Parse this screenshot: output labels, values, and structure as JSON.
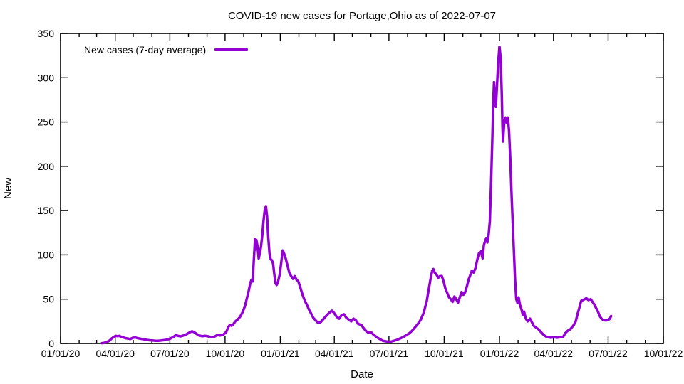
{
  "chart_data": {
    "type": "line",
    "title": "COVID-19 new cases for Portage,Ohio as of 2022-07-07",
    "xlabel": "Date",
    "ylabel": "New",
    "grid": false,
    "legend_position": "top-left-inside",
    "x_range": [
      "2020-01-01",
      "2022-10-01"
    ],
    "ylim": [
      0,
      350
    ],
    "y_ticks": [
      0,
      50,
      100,
      150,
      200,
      250,
      300,
      350
    ],
    "x_ticks": [
      {
        "date": "2020-01-01",
        "label": "01/01/20"
      },
      {
        "date": "2020-04-01",
        "label": "04/01/20"
      },
      {
        "date": "2020-07-01",
        "label": "07/01/20"
      },
      {
        "date": "2020-10-01",
        "label": "10/01/20"
      },
      {
        "date": "2021-01-01",
        "label": "01/01/21"
      },
      {
        "date": "2021-04-01",
        "label": "04/01/21"
      },
      {
        "date": "2021-07-01",
        "label": "07/01/21"
      },
      {
        "date": "2021-10-01",
        "label": "10/01/21"
      },
      {
        "date": "2022-01-01",
        "label": "01/01/22"
      },
      {
        "date": "2022-04-01",
        "label": "04/01/22"
      },
      {
        "date": "2022-07-01",
        "label": "07/01/22"
      },
      {
        "date": "2022-10-01",
        "label": "10/01/22"
      }
    ],
    "minor_x_tick_interval": "monthly",
    "colors": {
      "axis": "#000000",
      "background": "#ffffff"
    },
    "series": [
      {
        "name": "New cases (7-day average)",
        "color": "#9400d3",
        "points": [
          [
            "2020-03-10",
            0.3
          ],
          [
            "2020-03-14",
            0.7
          ],
          [
            "2020-03-18",
            1.5
          ],
          [
            "2020-03-22",
            3
          ],
          [
            "2020-03-26",
            5.5
          ],
          [
            "2020-03-30",
            7.5
          ],
          [
            "2020-04-02",
            8.6
          ],
          [
            "2020-04-05",
            8.2
          ],
          [
            "2020-04-08",
            8.6
          ],
          [
            "2020-04-11",
            7.5
          ],
          [
            "2020-04-14",
            7
          ],
          [
            "2020-04-18",
            6
          ],
          [
            "2020-04-22",
            5.5
          ],
          [
            "2020-04-26",
            5
          ],
          [
            "2020-04-30",
            6.3
          ],
          [
            "2020-05-04",
            6.8
          ],
          [
            "2020-05-08",
            6
          ],
          [
            "2020-05-12",
            5.5
          ],
          [
            "2020-05-16",
            5
          ],
          [
            "2020-05-20",
            4.5
          ],
          [
            "2020-05-24",
            4
          ],
          [
            "2020-05-28",
            3.6
          ],
          [
            "2020-06-02",
            3.4
          ],
          [
            "2020-06-07",
            3
          ],
          [
            "2020-06-12",
            3
          ],
          [
            "2020-06-17",
            3.4
          ],
          [
            "2020-06-22",
            3.8
          ],
          [
            "2020-06-27",
            4.4
          ],
          [
            "2020-07-02",
            5.5
          ],
          [
            "2020-07-07",
            7.5
          ],
          [
            "2020-07-11",
            9.3
          ],
          [
            "2020-07-15",
            8.5
          ],
          [
            "2020-07-19",
            8
          ],
          [
            "2020-07-24",
            9
          ],
          [
            "2020-07-29",
            10.5
          ],
          [
            "2020-08-03",
            12.5
          ],
          [
            "2020-08-07",
            13.8
          ],
          [
            "2020-08-11",
            12.5
          ],
          [
            "2020-08-15",
            10.5
          ],
          [
            "2020-08-19",
            9
          ],
          [
            "2020-08-24",
            8.2
          ],
          [
            "2020-08-29",
            8.6
          ],
          [
            "2020-09-03",
            8
          ],
          [
            "2020-09-08",
            7.2
          ],
          [
            "2020-09-13",
            7.6
          ],
          [
            "2020-09-18",
            9.4
          ],
          [
            "2020-09-23",
            9
          ],
          [
            "2020-09-28",
            10
          ],
          [
            "2020-10-03",
            13
          ],
          [
            "2020-10-06",
            18
          ],
          [
            "2020-10-09",
            21
          ],
          [
            "2020-10-12",
            20
          ],
          [
            "2020-10-15",
            22
          ],
          [
            "2020-10-18",
            25
          ],
          [
            "2020-10-22",
            27
          ],
          [
            "2020-10-26",
            30
          ],
          [
            "2020-10-30",
            35
          ],
          [
            "2020-11-03",
            42
          ],
          [
            "2020-11-06",
            50
          ],
          [
            "2020-11-09",
            58
          ],
          [
            "2020-11-12",
            68
          ],
          [
            "2020-11-14",
            72
          ],
          [
            "2020-11-16",
            70
          ],
          [
            "2020-11-18",
            95
          ],
          [
            "2020-11-20",
            118
          ],
          [
            "2020-11-21",
            106
          ],
          [
            "2020-11-22",
            117
          ],
          [
            "2020-11-24",
            110
          ],
          [
            "2020-11-26",
            96
          ],
          [
            "2020-11-28",
            102
          ],
          [
            "2020-11-30",
            110
          ],
          [
            "2020-12-02",
            122
          ],
          [
            "2020-12-04",
            138
          ],
          [
            "2020-12-06",
            150
          ],
          [
            "2020-12-08",
            155
          ],
          [
            "2020-12-10",
            143
          ],
          [
            "2020-12-12",
            120
          ],
          [
            "2020-12-14",
            102
          ],
          [
            "2020-12-16",
            95
          ],
          [
            "2020-12-18",
            94
          ],
          [
            "2020-12-20",
            90
          ],
          [
            "2020-12-22",
            78
          ],
          [
            "2020-12-24",
            68
          ],
          [
            "2020-12-26",
            66
          ],
          [
            "2020-12-28",
            69
          ],
          [
            "2020-12-31",
            78
          ],
          [
            "2021-01-02",
            88
          ],
          [
            "2021-01-05",
            105
          ],
          [
            "2021-01-07",
            102
          ],
          [
            "2021-01-10",
            96
          ],
          [
            "2021-01-13",
            88
          ],
          [
            "2021-01-16",
            80
          ],
          [
            "2021-01-19",
            76
          ],
          [
            "2021-01-22",
            73
          ],
          [
            "2021-01-25",
            76
          ],
          [
            "2021-01-28",
            72
          ],
          [
            "2021-01-31",
            70
          ],
          [
            "2021-02-03",
            64
          ],
          [
            "2021-02-07",
            55
          ],
          [
            "2021-02-11",
            48
          ],
          [
            "2021-02-14",
            44
          ],
          [
            "2021-02-18",
            38
          ],
          [
            "2021-02-22",
            33
          ],
          [
            "2021-02-25",
            29
          ],
          [
            "2021-03-01",
            26
          ],
          [
            "2021-03-05",
            23
          ],
          [
            "2021-03-09",
            24
          ],
          [
            "2021-03-13",
            27
          ],
          [
            "2021-03-17",
            30
          ],
          [
            "2021-03-21",
            33
          ],
          [
            "2021-03-25",
            35.5
          ],
          [
            "2021-03-28",
            37
          ],
          [
            "2021-04-01",
            34
          ],
          [
            "2021-04-05",
            30
          ],
          [
            "2021-04-09",
            28
          ],
          [
            "2021-04-13",
            32
          ],
          [
            "2021-04-17",
            33
          ],
          [
            "2021-04-21",
            29
          ],
          [
            "2021-04-25",
            27
          ],
          [
            "2021-04-29",
            25
          ],
          [
            "2021-05-03",
            28
          ],
          [
            "2021-05-07",
            26
          ],
          [
            "2021-05-11",
            22
          ],
          [
            "2021-05-16",
            21
          ],
          [
            "2021-05-20",
            17
          ],
          [
            "2021-05-24",
            14
          ],
          [
            "2021-05-28",
            12
          ],
          [
            "2021-06-01",
            13
          ],
          [
            "2021-06-05",
            10
          ],
          [
            "2021-06-09",
            8
          ],
          [
            "2021-06-13",
            6
          ],
          [
            "2021-06-17",
            4.5
          ],
          [
            "2021-06-21",
            3
          ],
          [
            "2021-06-25",
            2.5
          ],
          [
            "2021-06-29",
            2
          ],
          [
            "2021-07-04",
            2
          ],
          [
            "2021-07-09",
            3
          ],
          [
            "2021-07-14",
            4
          ],
          [
            "2021-07-19",
            5.5
          ],
          [
            "2021-07-24",
            7
          ],
          [
            "2021-07-29",
            9
          ],
          [
            "2021-08-03",
            11
          ],
          [
            "2021-08-08",
            14
          ],
          [
            "2021-08-13",
            18
          ],
          [
            "2021-08-18",
            22
          ],
          [
            "2021-08-23",
            27
          ],
          [
            "2021-08-28",
            35
          ],
          [
            "2021-09-02",
            48
          ],
          [
            "2021-09-05",
            60
          ],
          [
            "2021-09-08",
            72
          ],
          [
            "2021-09-11",
            82
          ],
          [
            "2021-09-13",
            84
          ],
          [
            "2021-09-15",
            80
          ],
          [
            "2021-09-18",
            78
          ],
          [
            "2021-09-21",
            74
          ],
          [
            "2021-09-24",
            76
          ],
          [
            "2021-09-27",
            76
          ],
          [
            "2021-09-30",
            70
          ],
          [
            "2021-10-03",
            62
          ],
          [
            "2021-10-06",
            57
          ],
          [
            "2021-10-09",
            52
          ],
          [
            "2021-10-12",
            50
          ],
          [
            "2021-10-15",
            47
          ],
          [
            "2021-10-18",
            53
          ],
          [
            "2021-10-21",
            50
          ],
          [
            "2021-10-24",
            46
          ],
          [
            "2021-10-27",
            52
          ],
          [
            "2021-10-30",
            58
          ],
          [
            "2021-11-02",
            55
          ],
          [
            "2021-11-05",
            58
          ],
          [
            "2021-11-08",
            65
          ],
          [
            "2021-11-11",
            73
          ],
          [
            "2021-11-14",
            78
          ],
          [
            "2021-11-16",
            82
          ],
          [
            "2021-11-19",
            80
          ],
          [
            "2021-11-22",
            85
          ],
          [
            "2021-11-24",
            91
          ],
          [
            "2021-11-26",
            97
          ],
          [
            "2021-11-28",
            102
          ],
          [
            "2021-12-01",
            104
          ],
          [
            "2021-12-04",
            96
          ],
          [
            "2021-12-06",
            111
          ],
          [
            "2021-12-08",
            115
          ],
          [
            "2021-12-10",
            119
          ],
          [
            "2021-12-12",
            114
          ],
          [
            "2021-12-14",
            123
          ],
          [
            "2021-12-16",
            138
          ],
          [
            "2021-12-18",
            180
          ],
          [
            "2021-12-20",
            228
          ],
          [
            "2021-12-22",
            278
          ],
          [
            "2021-12-23",
            295
          ],
          [
            "2021-12-24",
            283
          ],
          [
            "2021-12-26",
            267
          ],
          [
            "2021-12-28",
            292
          ],
          [
            "2021-12-30",
            318
          ],
          [
            "2022-01-01",
            335
          ],
          [
            "2022-01-03",
            323
          ],
          [
            "2022-01-05",
            280
          ],
          [
            "2022-01-06",
            245
          ],
          [
            "2022-01-07",
            228
          ],
          [
            "2022-01-09",
            250
          ],
          [
            "2022-01-11",
            255
          ],
          [
            "2022-01-13",
            249
          ],
          [
            "2022-01-15",
            255
          ],
          [
            "2022-01-17",
            240
          ],
          [
            "2022-01-19",
            210
          ],
          [
            "2022-01-21",
            172
          ],
          [
            "2022-01-23",
            138
          ],
          [
            "2022-01-25",
            105
          ],
          [
            "2022-01-27",
            72
          ],
          [
            "2022-01-29",
            50
          ],
          [
            "2022-01-31",
            46
          ],
          [
            "2022-02-02",
            52
          ],
          [
            "2022-02-04",
            44
          ],
          [
            "2022-02-07",
            38
          ],
          [
            "2022-02-09",
            32
          ],
          [
            "2022-02-11",
            36
          ],
          [
            "2022-02-14",
            28
          ],
          [
            "2022-02-17",
            25
          ],
          [
            "2022-02-21",
            28
          ],
          [
            "2022-02-24",
            24
          ],
          [
            "2022-02-27",
            20
          ],
          [
            "2022-03-03",
            18
          ],
          [
            "2022-03-07",
            16
          ],
          [
            "2022-03-11",
            13
          ],
          [
            "2022-03-15",
            10
          ],
          [
            "2022-03-19",
            8
          ],
          [
            "2022-03-23",
            7
          ],
          [
            "2022-03-28",
            6.5
          ],
          [
            "2022-04-02",
            7
          ],
          [
            "2022-04-07",
            6.5
          ],
          [
            "2022-04-12",
            7
          ],
          [
            "2022-04-17",
            7.5
          ],
          [
            "2022-04-21",
            12
          ],
          [
            "2022-04-25",
            14.5
          ],
          [
            "2022-04-29",
            16
          ],
          [
            "2022-05-02",
            18.5
          ],
          [
            "2022-05-05",
            21
          ],
          [
            "2022-05-08",
            25
          ],
          [
            "2022-05-11",
            33
          ],
          [
            "2022-05-14",
            40
          ],
          [
            "2022-05-17",
            48
          ],
          [
            "2022-05-20",
            49
          ],
          [
            "2022-05-23",
            50
          ],
          [
            "2022-05-26",
            51
          ],
          [
            "2022-05-29",
            49
          ],
          [
            "2022-06-02",
            50
          ],
          [
            "2022-06-05",
            47
          ],
          [
            "2022-06-08",
            44
          ],
          [
            "2022-06-11",
            40
          ],
          [
            "2022-06-14",
            36
          ],
          [
            "2022-06-17",
            31
          ],
          [
            "2022-06-20",
            28
          ],
          [
            "2022-06-23",
            26.5
          ],
          [
            "2022-06-27",
            26
          ],
          [
            "2022-07-01",
            26.5
          ],
          [
            "2022-07-04",
            28
          ],
          [
            "2022-07-06",
            31
          ]
        ]
      }
    ]
  },
  "legend": {
    "label": "New cases (7-day average)"
  }
}
